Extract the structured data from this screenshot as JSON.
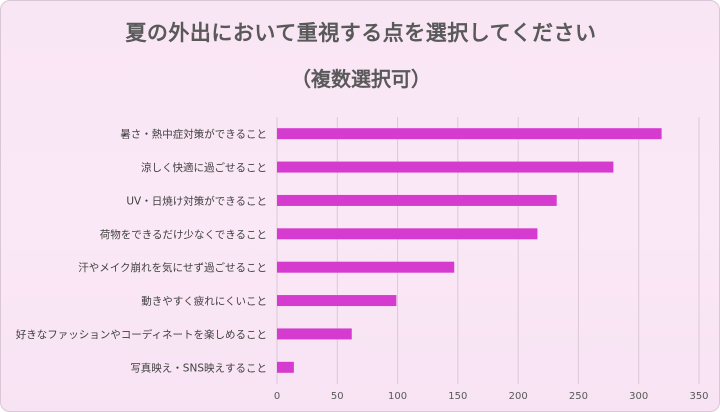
{
  "chart_data": {
    "type": "bar",
    "orientation": "horizontal",
    "title": "夏の外出において重視する点を選択してください",
    "subtitle": "（複数選択可）",
    "categories": [
      "暑さ・熱中症対策ができること",
      "涼しく快適に過ごせること",
      "UV・日焼け対策ができること",
      "荷物をできるだけ少なくできること",
      "汗やメイク崩れを気にせず過ごせること",
      "動きやすく疲れにくいこと",
      "好きなファッションやコーディネートを楽しめること",
      "写真映え・SNS映えすること"
    ],
    "values": [
      319,
      279,
      232,
      216,
      147,
      99,
      62,
      14
    ],
    "xlim": [
      0,
      350
    ],
    "xticks": [
      0,
      50,
      100,
      150,
      200,
      250,
      300,
      350
    ],
    "grid": true,
    "legend": "none",
    "bar_color": "#d63bd0"
  }
}
